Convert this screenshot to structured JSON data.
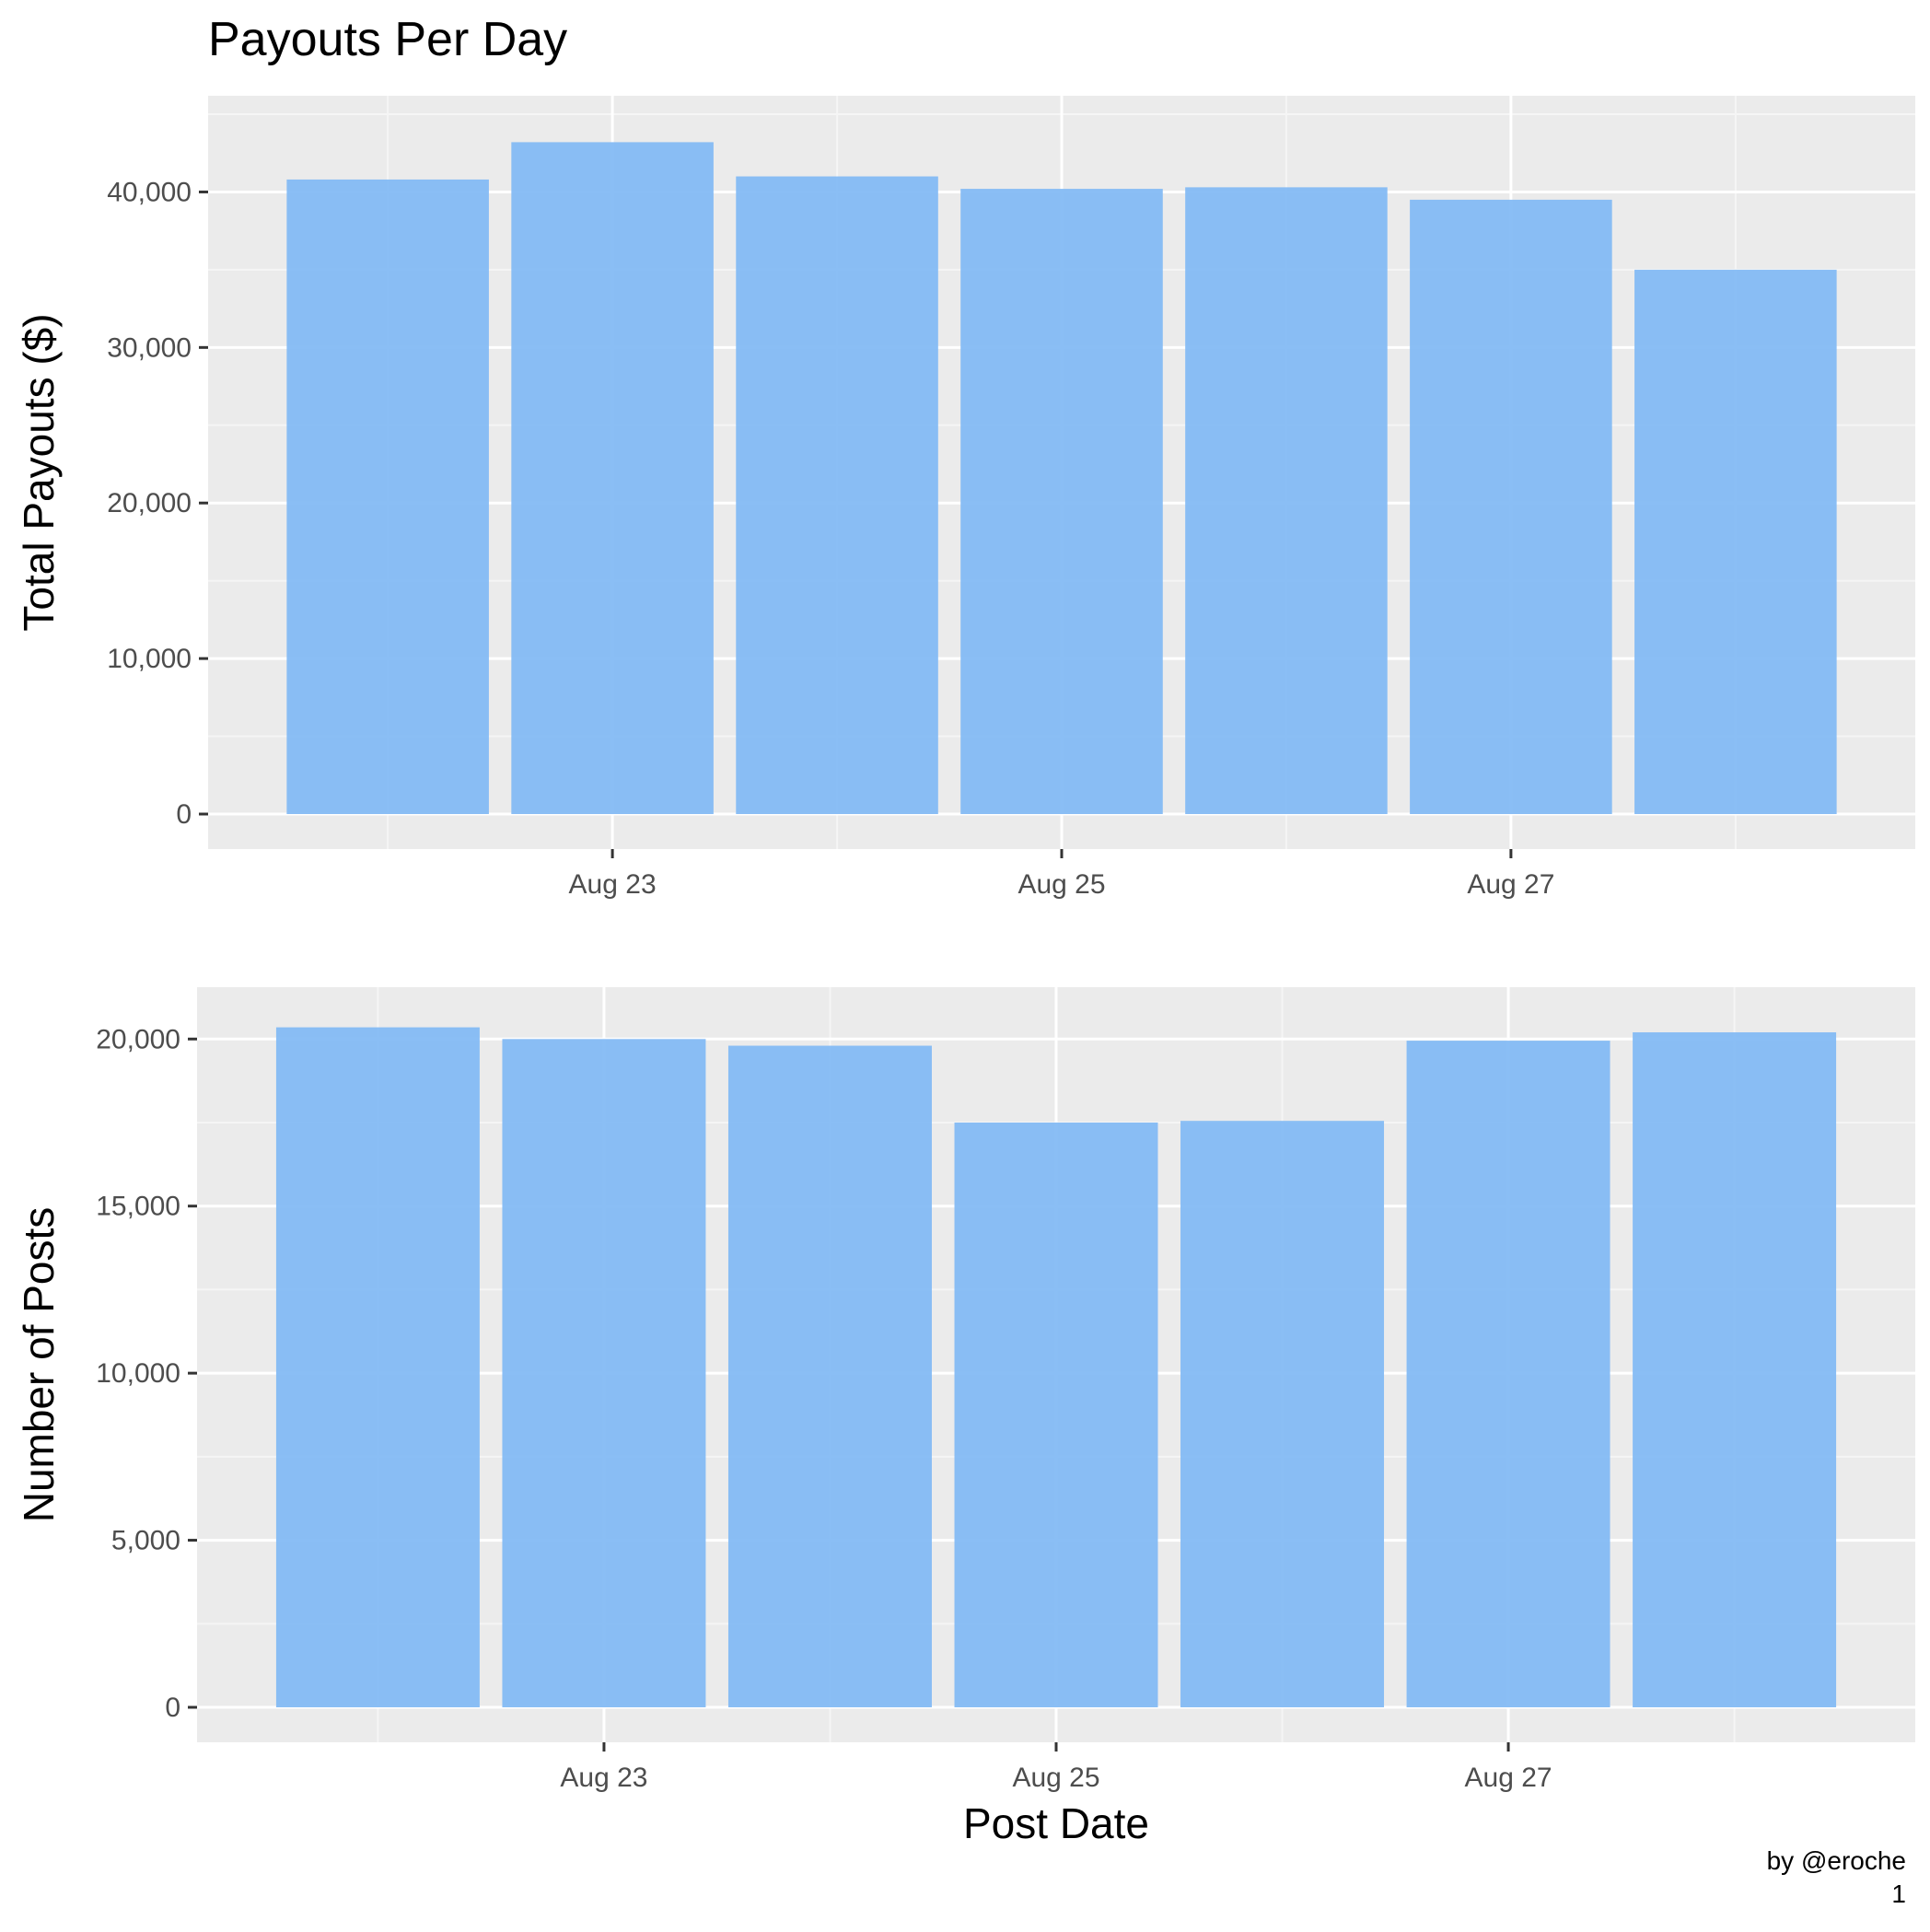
{
  "title": "Payouts Per Day",
  "caption": {
    "line1": "by @eroche",
    "line2": "1"
  },
  "colors": {
    "panel": "#ebebeb",
    "grid_major": "#ffffff",
    "grid_minor": "#f5f5f5",
    "bar": "#84bbf4",
    "tick_text": "#4d4d4d",
    "tick_mark": "#333333"
  },
  "chart_data": [
    {
      "type": "bar",
      "xlabel": "",
      "ylabel": "Total Payouts ($)",
      "x": [
        "2017-08-22",
        "2017-08-23",
        "2017-08-24",
        "2017-08-25",
        "2017-08-26",
        "2017-08-27",
        "2017-08-28"
      ],
      "values": [
        40800,
        43200,
        41000,
        40200,
        40300,
        39500,
        35000
      ],
      "ylim": [
        0,
        45000
      ],
      "yticks": [
        0,
        10000,
        20000,
        30000,
        40000
      ],
      "ytick_labels": [
        "0",
        "10,000",
        "20,000",
        "30,000",
        "40,000"
      ],
      "xticks": [
        "2017-08-23",
        "2017-08-25",
        "2017-08-27"
      ],
      "xtick_labels": [
        "Aug 23",
        "Aug 25",
        "Aug 27"
      ],
      "grid": true,
      "legend": "none"
    },
    {
      "type": "bar",
      "xlabel": "Post Date",
      "ylabel": "Number of Posts",
      "x": [
        "2017-08-22",
        "2017-08-23",
        "2017-08-24",
        "2017-08-25",
        "2017-08-26",
        "2017-08-27",
        "2017-08-28"
      ],
      "values": [
        20350,
        20000,
        19800,
        17500,
        17550,
        19950,
        20200
      ],
      "ylim": [
        0,
        21000
      ],
      "yticks": [
        0,
        5000,
        10000,
        15000,
        20000
      ],
      "ytick_labels": [
        "0",
        "5,000",
        "10,000",
        "15,000",
        "20,000"
      ],
      "xticks": [
        "2017-08-23",
        "2017-08-25",
        "2017-08-27"
      ],
      "xtick_labels": [
        "Aug 23",
        "Aug 25",
        "Aug 27"
      ],
      "grid": true,
      "legend": "none"
    }
  ]
}
